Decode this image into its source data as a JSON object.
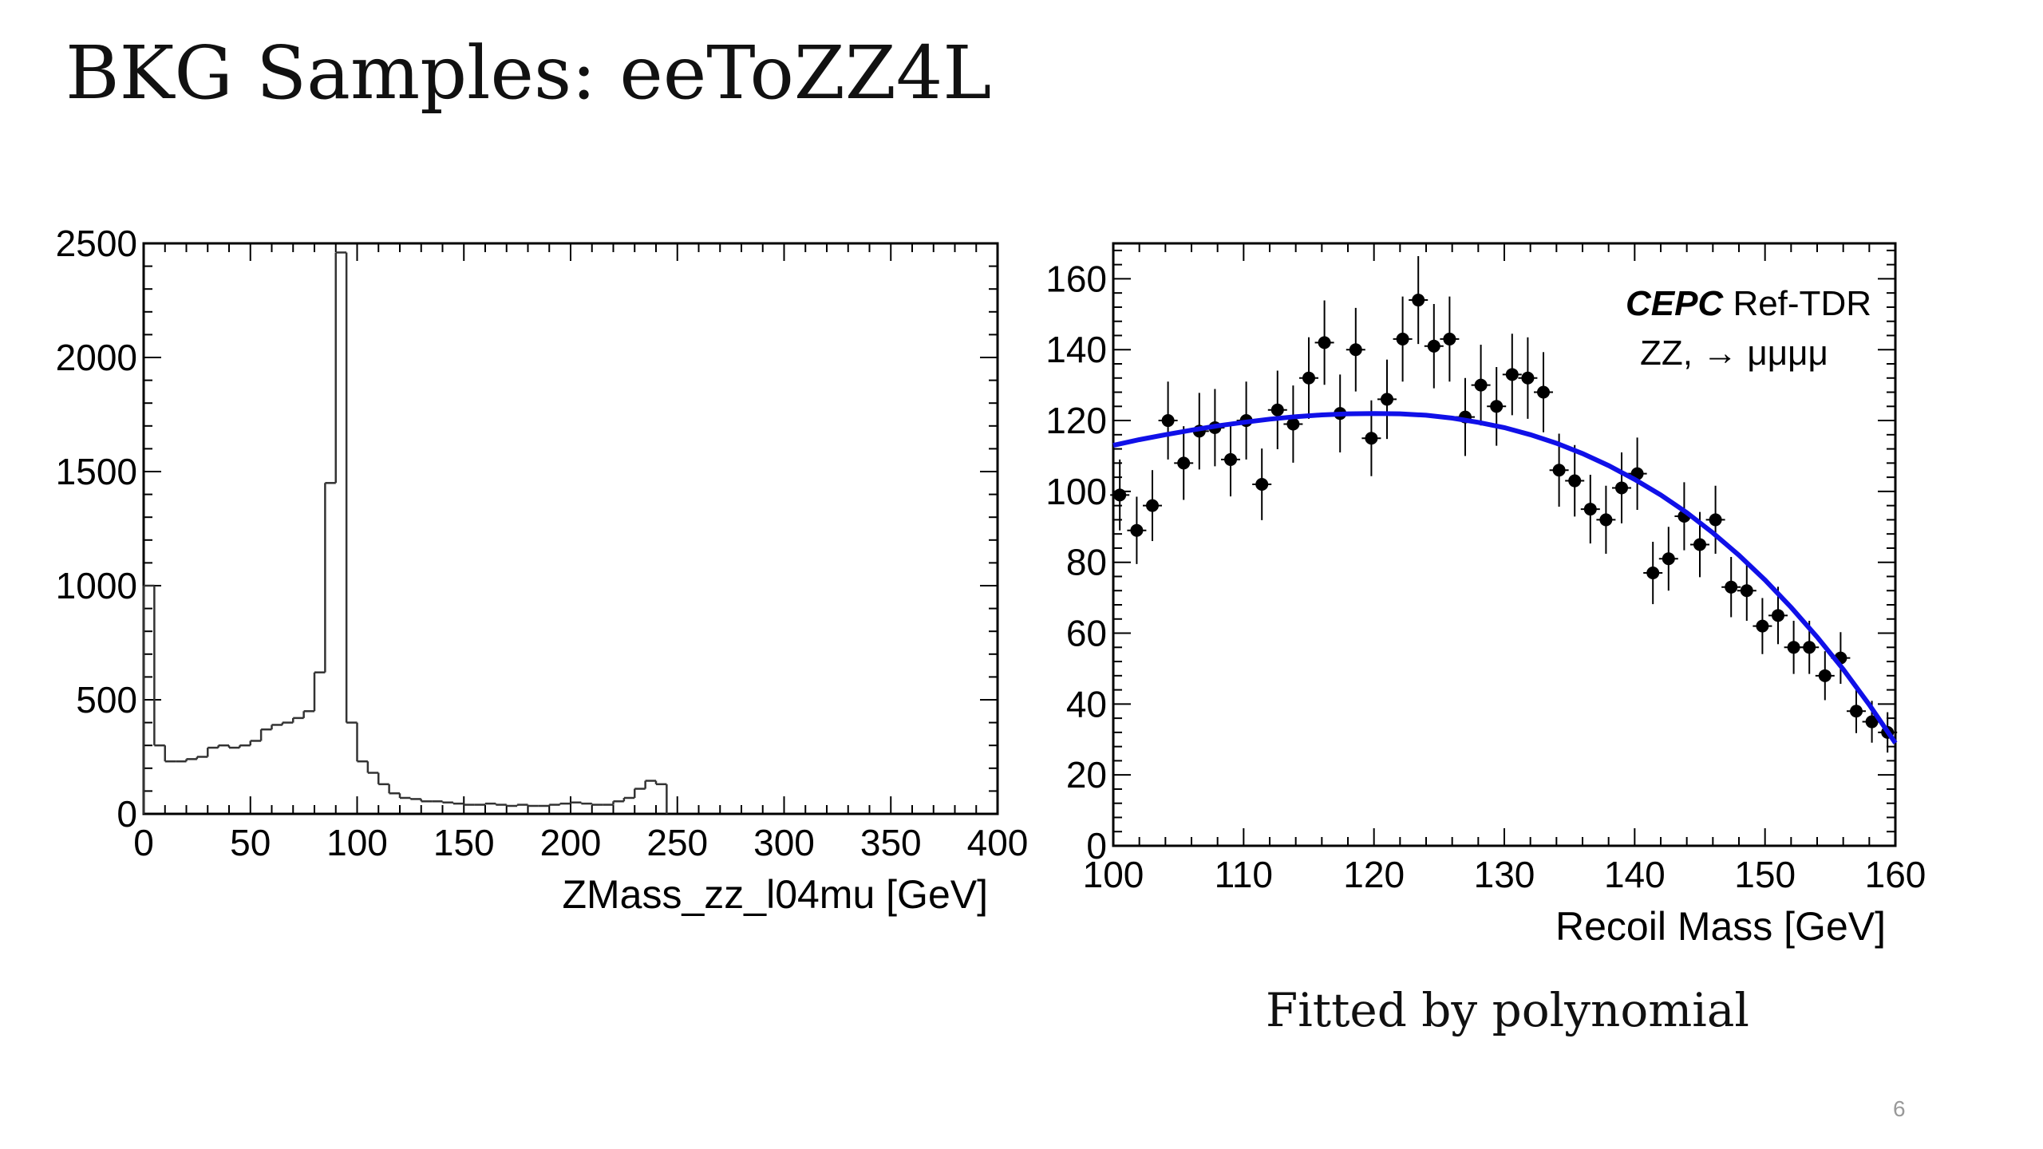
{
  "slide": {
    "title": "BKG Samples: eeToZZ4L",
    "caption": "Fitted by polynomial",
    "page_number": "6"
  },
  "colors": {
    "fit_line": "#1010e8",
    "points": "#000000",
    "histogram": "#333333"
  },
  "chart_data": [
    {
      "type": "bar",
      "style": "step-histogram",
      "title": "",
      "xlabel": "ZMass_zz_l04mu [GeV]",
      "ylabel": "",
      "xlim": [
        0,
        400
      ],
      "ylim": [
        0,
        2500
      ],
      "xticks": [
        0,
        50,
        100,
        150,
        200,
        250,
        300,
        350,
        400
      ],
      "yticks": [
        0,
        500,
        1000,
        1500,
        2000,
        2500
      ],
      "bin_width": 5,
      "bin_edges_start": 0,
      "values": [
        1000,
        300,
        230,
        230,
        240,
        250,
        290,
        300,
        290,
        300,
        320,
        370,
        390,
        400,
        420,
        450,
        620,
        1450,
        2460,
        400,
        230,
        180,
        130,
        90,
        70,
        65,
        55,
        55,
        50,
        45,
        40,
        40,
        45,
        40,
        35,
        40,
        35,
        35,
        40,
        45,
        50,
        45,
        40,
        40,
        55,
        70,
        110,
        145,
        130
      ]
    },
    {
      "type": "scatter",
      "title": "",
      "xlabel": "Recoil Mass [GeV]",
      "ylabel": "",
      "xlim": [
        100,
        160
      ],
      "ylim": [
        0,
        170
      ],
      "xticks": [
        100,
        110,
        120,
        130,
        140,
        150,
        160
      ],
      "yticks": [
        0,
        20,
        40,
        60,
        80,
        100,
        120,
        140,
        160
      ],
      "legend": {
        "experiment": "CEPC",
        "label": "Ref-TDR",
        "process": "ZZ, → μμμμ",
        "position": "top-right"
      },
      "series": [
        {
          "name": "data",
          "x": [
            100.5,
            101.8,
            103.0,
            104.2,
            105.4,
            106.6,
            107.8,
            109.0,
            110.2,
            111.4,
            112.6,
            113.8,
            115.0,
            116.2,
            117.4,
            118.6,
            119.8,
            121.0,
            122.2,
            123.4,
            124.6,
            125.8,
            127.0,
            128.2,
            129.4,
            130.6,
            131.8,
            133.0,
            134.2,
            135.4,
            136.6,
            137.8,
            139.0,
            140.2,
            141.4,
            142.6,
            143.8,
            145.0,
            146.2,
            147.4,
            148.6,
            149.8,
            151.0,
            152.2,
            153.4,
            154.6,
            155.8,
            157.0,
            158.2,
            159.4
          ],
          "y": [
            99,
            89,
            96,
            120,
            108,
            117,
            118,
            109,
            120,
            102,
            123,
            119,
            132,
            142,
            122,
            140,
            115,
            126,
            143,
            154,
            141,
            143,
            121,
            130,
            124,
            133,
            132,
            128,
            106,
            103,
            95,
            92,
            101,
            105,
            77,
            81,
            93,
            85,
            92,
            73,
            72,
            62,
            65,
            56,
            56,
            48,
            53,
            38,
            35,
            32
          ],
          "yerr": [
            10,
            9.5,
            10,
            11,
            10.4,
            10.8,
            10.9,
            10.4,
            11,
            10.1,
            11.1,
            10.9,
            11.5,
            11.9,
            11,
            11.8,
            10.7,
            11.2,
            12,
            12.4,
            11.9,
            12,
            11,
            11.4,
            11.1,
            11.5,
            11.5,
            11.3,
            10.3,
            10.1,
            9.7,
            9.6,
            10,
            10.2,
            8.8,
            9,
            9.6,
            9.2,
            9.6,
            8.5,
            8.5,
            7.9,
            8.1,
            7.5,
            7.5,
            6.9,
            7.3,
            6.2,
            5.9,
            5.7
          ]
        },
        {
          "name": "polynomial fit",
          "type": "line",
          "x": [
            100,
            102,
            104,
            106,
            108,
            110,
            112,
            114,
            116,
            118,
            120,
            122,
            124,
            126,
            128,
            130,
            132,
            134,
            136,
            138,
            140,
            142,
            144,
            146,
            148,
            150,
            152,
            154,
            156,
            158,
            160
          ],
          "y": [
            113,
            114.6,
            116,
            117.3,
            118.5,
            119.5,
            120.4,
            121.1,
            121.6,
            121.9,
            122,
            121.9,
            121.5,
            120.7,
            119.5,
            118,
            116,
            113.6,
            110.7,
            107.3,
            103.4,
            99,
            94,
            88.3,
            82,
            75,
            67.3,
            58.9,
            49.8,
            39.8,
            29
          ]
        }
      ]
    }
  ]
}
